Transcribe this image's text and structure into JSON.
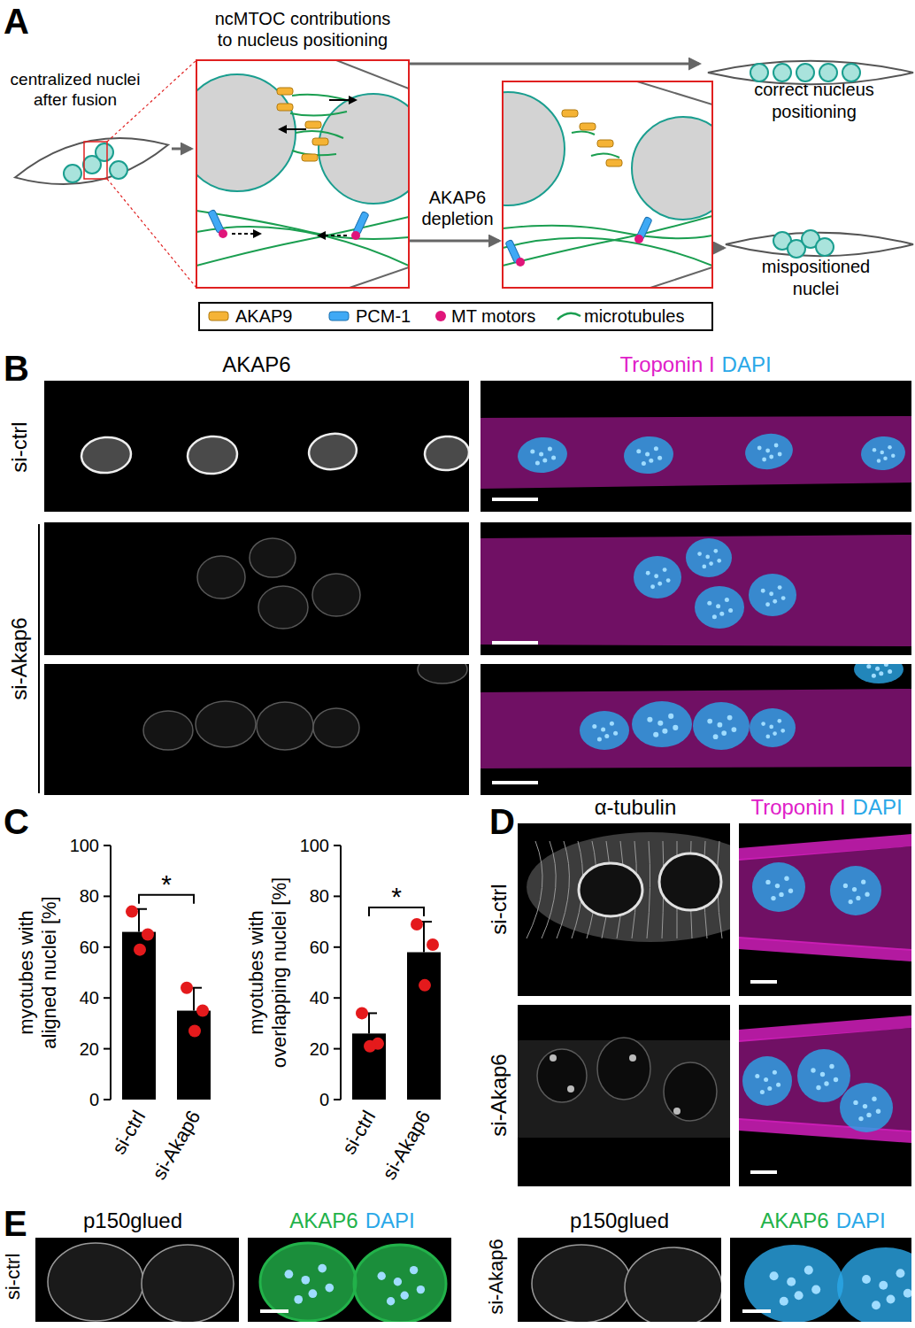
{
  "panel_a": {
    "label": "A",
    "title": [
      "ncMTOC contributions",
      "to nucleus positioning"
    ],
    "start": [
      "centralized nuclei",
      "after fusion"
    ],
    "step": [
      "AKAP6",
      "depletion"
    ],
    "outcome_correct": [
      "correct nucleus",
      "positioning"
    ],
    "outcome_wrong": [
      "mispositioned",
      "nuclei"
    ],
    "legend": [
      {
        "name": "AKAP9",
        "color": "#f5b335"
      },
      {
        "name": "PCM-1",
        "color": "#3fa9f5"
      },
      {
        "name": "MT motors",
        "color": "#e0157a"
      },
      {
        "name": "microtubules",
        "color": "#1a9e50"
      }
    ]
  },
  "panel_b": {
    "label": "B",
    "left_channel": {
      "text": "AKAP6",
      "color": "#000000"
    },
    "right_channels": [
      {
        "text": "Troponin I",
        "color": "#e020c8"
      },
      {
        "text": "DAPI",
        "color": "#2aa8e8"
      }
    ],
    "conditions": [
      "si-ctrl",
      "si-Akap6"
    ]
  },
  "panel_c": {
    "label": "C"
  },
  "chart_data": [
    {
      "type": "bar",
      "y_label": [
        "myotubes with",
        "aligned nuclei [%]"
      ],
      "categories": [
        "si-ctrl",
        "si-Akap6"
      ],
      "values": [
        66,
        35
      ],
      "errors": [
        9,
        9
      ],
      "points": {
        "color": "#e41a1c",
        "values": [
          [
            74,
            65,
            59
          ],
          [
            44,
            35,
            27
          ]
        ]
      },
      "color": "#000000",
      "ylim": [
        0,
        100
      ],
      "yticks": [
        0,
        20,
        40,
        60,
        80,
        100
      ],
      "significance": "*"
    },
    {
      "type": "bar",
      "y_label": [
        "myotubes with",
        "overlapping nuclei [%]"
      ],
      "categories": [
        "si-ctrl",
        "si-Akap6"
      ],
      "values": [
        26,
        58
      ],
      "errors": [
        8,
        12
      ],
      "points": {
        "color": "#e41a1c",
        "values": [
          [
            34,
            22,
            21
          ],
          [
            69,
            61,
            45
          ]
        ]
      },
      "color": "#000000",
      "ylim": [
        0,
        100
      ],
      "yticks": [
        0,
        20,
        40,
        60,
        80,
        100
      ],
      "significance": "*"
    }
  ],
  "panel_d": {
    "label": "D",
    "left_channel": {
      "text": "α-tubulin",
      "color": "#000000"
    },
    "right_channels": [
      {
        "text": "Troponin I",
        "color": "#e020c8"
      },
      {
        "text": "DAPI",
        "color": "#2aa8e8"
      }
    ],
    "conditions": [
      "si-ctrl",
      "si-Akap6"
    ]
  },
  "panel_e": {
    "label": "E",
    "left_channel": {
      "text": "p150glued",
      "color": "#000000"
    },
    "right_channels": [
      {
        "text": "AKAP6",
        "color": "#22b24a"
      },
      {
        "text": "DAPI",
        "color": "#2aa8e8"
      }
    ],
    "conditions": [
      "si-ctrl",
      "si-Akap6"
    ]
  }
}
